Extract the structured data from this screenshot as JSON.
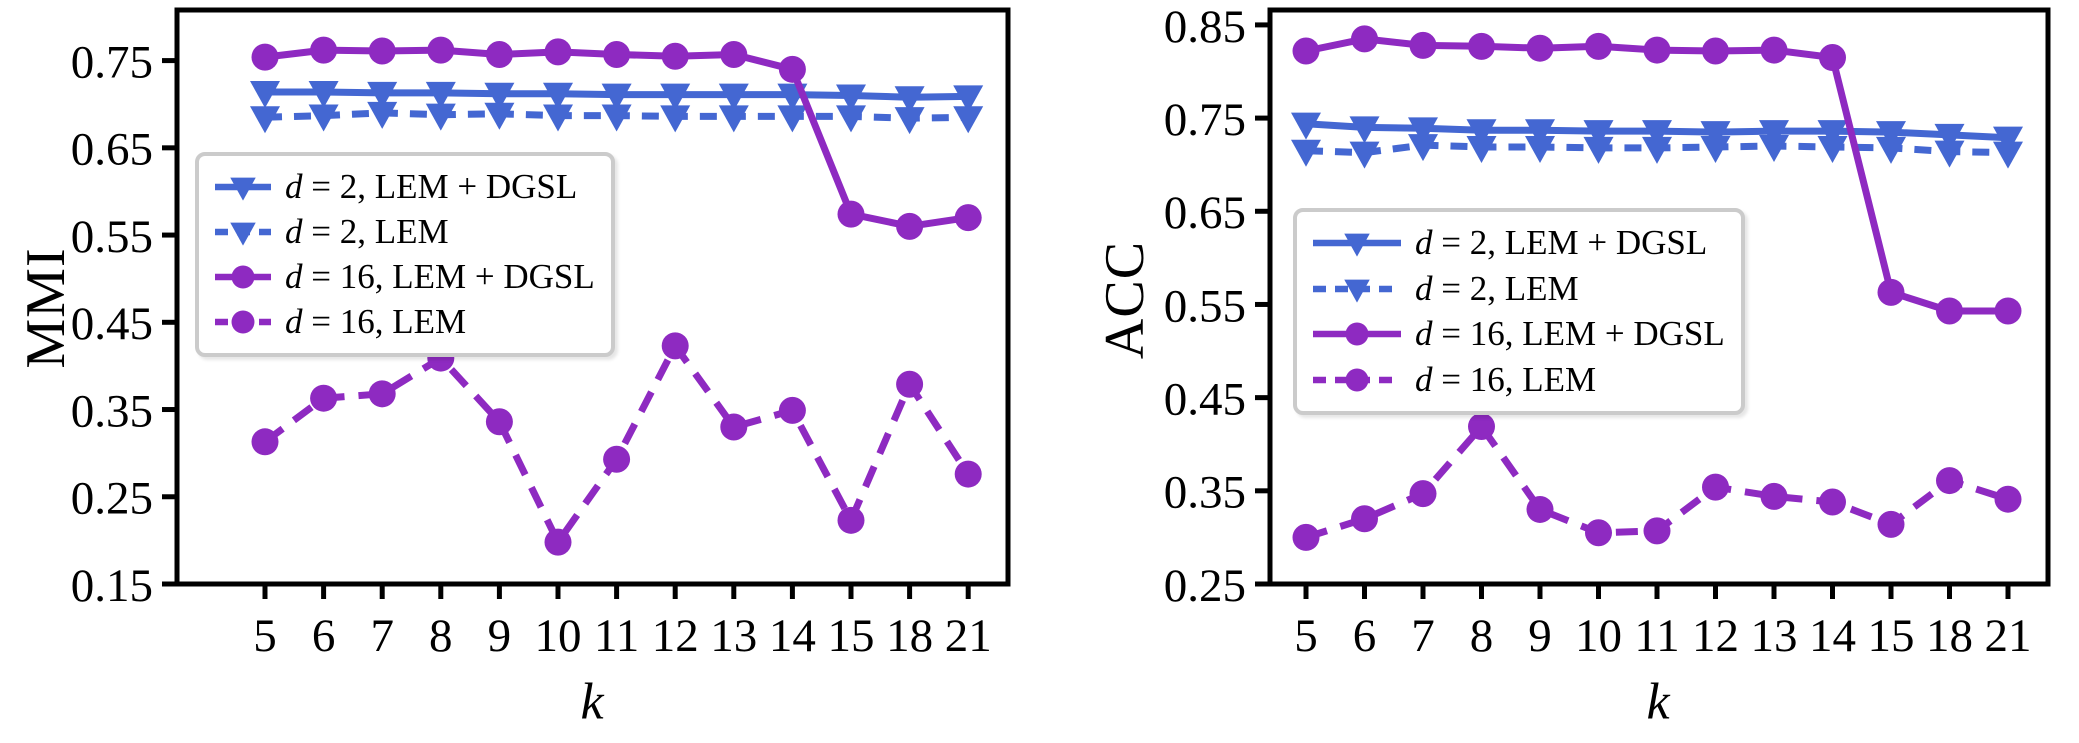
{
  "figure": {
    "background": "#ffffff",
    "axis_color": "#000000",
    "legend_border_color": "#cbcbcb",
    "blue": "#4467d2",
    "purple": "#8e2ac1"
  },
  "chart_data": [
    {
      "type": "line",
      "title": "",
      "xlabel": "k",
      "ylabel": "MMI",
      "categories": [
        "5",
        "6",
        "7",
        "8",
        "9",
        "10",
        "11",
        "12",
        "13",
        "14",
        "15",
        "18",
        "21"
      ],
      "ylim": [
        0.15,
        0.808
      ],
      "yticks": [
        "0.75",
        "0.65",
        "0.55",
        "0.45",
        "0.35",
        "0.25",
        "0.15"
      ],
      "ytick_values": [
        0.75,
        0.65,
        0.55,
        0.45,
        0.35,
        0.25,
        0.15
      ],
      "grid": false,
      "legend_position": "upper-left-inside",
      "series": [
        {
          "id": "d2-lem-dgsl",
          "var": "d",
          "label": " = 2, LEM + DGSL",
          "color": "#4467d2",
          "dash": false,
          "marker": "triangle-down",
          "values": [
            0.714,
            0.714,
            0.713,
            0.713,
            0.712,
            0.712,
            0.711,
            0.711,
            0.711,
            0.711,
            0.71,
            0.708,
            0.709
          ]
        },
        {
          "id": "d2-lem",
          "var": "d",
          "label": " = 2, LEM",
          "color": "#4467d2",
          "dash": true,
          "marker": "triangle-down",
          "values": [
            0.685,
            0.687,
            0.69,
            0.688,
            0.689,
            0.687,
            0.687,
            0.686,
            0.686,
            0.686,
            0.686,
            0.684,
            0.685
          ]
        },
        {
          "id": "d16-lem-dgsl",
          "var": "d",
          "label": " = 16, LEM + DGSL",
          "color": "#8e2ac1",
          "dash": false,
          "marker": "circle",
          "values": [
            0.754,
            0.762,
            0.761,
            0.762,
            0.757,
            0.76,
            0.757,
            0.755,
            0.757,
            0.74,
            0.574,
            0.56,
            0.57
          ]
        },
        {
          "id": "d16-lem",
          "var": "d",
          "label": " = 16, LEM",
          "color": "#8e2ac1",
          "dash": true,
          "marker": "circle",
          "values": [
            0.313,
            0.363,
            0.368,
            0.409,
            0.336,
            0.198,
            0.293,
            0.423,
            0.33,
            0.349,
            0.223,
            0.379,
            0.276
          ]
        }
      ]
    },
    {
      "type": "line",
      "title": "",
      "xlabel": "k",
      "ylabel": "ACC",
      "categories": [
        "5",
        "6",
        "7",
        "8",
        "9",
        "10",
        "11",
        "12",
        "13",
        "14",
        "15",
        "18",
        "21"
      ],
      "ylim": [
        0.25,
        0.866
      ],
      "yticks": [
        "0.85",
        "0.75",
        "0.65",
        "0.55",
        "0.45",
        "0.35",
        "0.25"
      ],
      "ytick_values": [
        0.85,
        0.75,
        0.65,
        0.55,
        0.45,
        0.35,
        0.25
      ],
      "grid": false,
      "legend_position": "middle-left-inside",
      "series": [
        {
          "id": "d2-lem-dgsl",
          "var": "d",
          "label": " = 2, LEM + DGSL",
          "color": "#4467d2",
          "dash": false,
          "marker": "triangle-down",
          "values": [
            0.744,
            0.74,
            0.739,
            0.737,
            0.737,
            0.736,
            0.736,
            0.735,
            0.736,
            0.736,
            0.735,
            0.732,
            0.729
          ]
        },
        {
          "id": "d2-lem",
          "var": "d",
          "label": " = 2, LEM",
          "color": "#4467d2",
          "dash": true,
          "marker": "triangle-down",
          "values": [
            0.715,
            0.713,
            0.721,
            0.719,
            0.719,
            0.718,
            0.718,
            0.719,
            0.72,
            0.719,
            0.718,
            0.714,
            0.713
          ]
        },
        {
          "id": "d16-lem-dgsl",
          "var": "d",
          "label": " = 16, LEM + DGSL",
          "color": "#8e2ac1",
          "dash": false,
          "marker": "circle",
          "values": [
            0.822,
            0.835,
            0.828,
            0.827,
            0.825,
            0.827,
            0.823,
            0.822,
            0.823,
            0.815,
            0.563,
            0.543,
            0.543
          ]
        },
        {
          "id": "d16-lem",
          "var": "d",
          "label": " = 16, LEM",
          "color": "#8e2ac1",
          "dash": true,
          "marker": "circle",
          "values": [
            0.3,
            0.32,
            0.347,
            0.419,
            0.33,
            0.305,
            0.307,
            0.354,
            0.344,
            0.338,
            0.314,
            0.361,
            0.341
          ]
        }
      ]
    }
  ]
}
